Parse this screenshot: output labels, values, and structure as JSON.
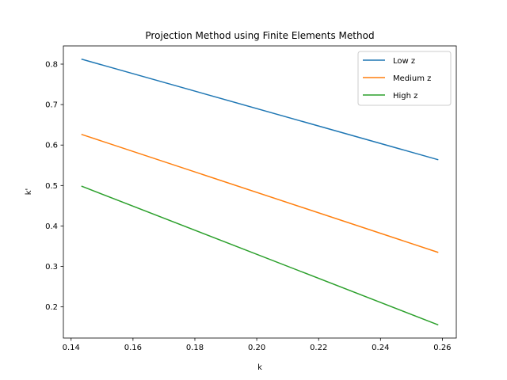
{
  "chart_data": {
    "type": "line",
    "title": "Projection Method using Finite Elements Method",
    "xlabel": "k",
    "ylabel": "k'",
    "xlim": [
      0.1375,
      0.2645
    ],
    "ylim": [
      0.123,
      0.845
    ],
    "xticks": [
      0.14,
      0.16,
      0.18,
      0.2,
      0.22,
      0.24,
      0.26
    ],
    "xtick_labels": [
      "0.14",
      "0.16",
      "0.18",
      "0.20",
      "0.22",
      "0.24",
      "0.26"
    ],
    "yticks": [
      0.2,
      0.3,
      0.4,
      0.5,
      0.6,
      0.7,
      0.8
    ],
    "ytick_labels": [
      "0.2",
      "0.3",
      "0.4",
      "0.5",
      "0.6",
      "0.7",
      "0.8"
    ],
    "legend_position": "top-right",
    "grid": false,
    "series": [
      {
        "name": "Low z",
        "color": "#1f77b4",
        "x": [
          0.1435,
          0.2585
        ],
        "y": [
          0.812,
          0.564
        ]
      },
      {
        "name": "Medium z",
        "color": "#ff7f0e",
        "x": [
          0.1435,
          0.2585
        ],
        "y": [
          0.626,
          0.335
        ]
      },
      {
        "name": "High z",
        "color": "#2ca02c",
        "x": [
          0.1435,
          0.2585
        ],
        "y": [
          0.498,
          0.156
        ]
      }
    ]
  }
}
